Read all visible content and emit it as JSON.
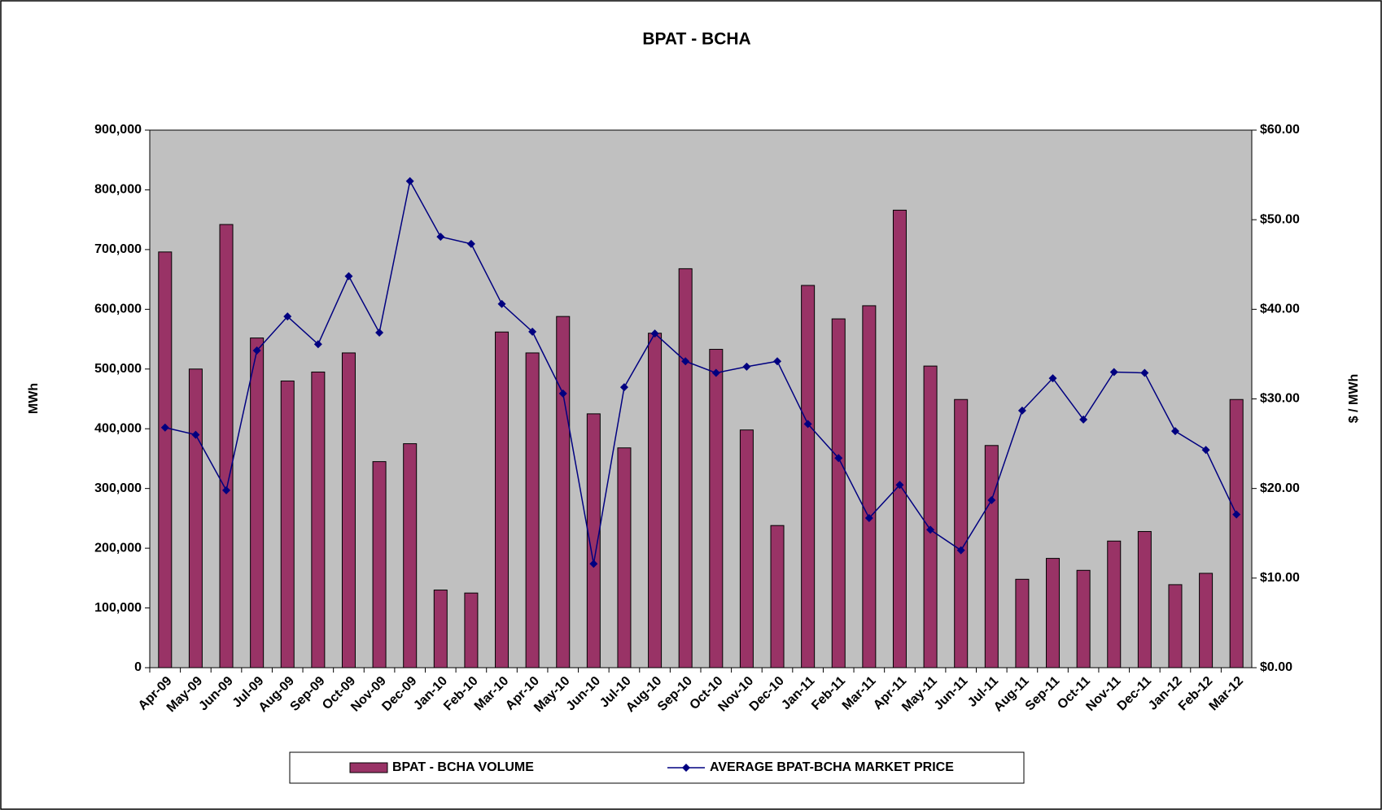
{
  "chart_data": {
    "type": "bar-line",
    "title": "BPAT - BCHA",
    "y_label": "MWh",
    "y2_label": "$ / MWh",
    "categories": [
      "Apr-09",
      "May-09",
      "Jun-09",
      "Jul-09",
      "Aug-09",
      "Sep-09",
      "Oct-09",
      "Nov-09",
      "Dec-09",
      "Jan-10",
      "Feb-10",
      "Mar-10",
      "Apr-10",
      "May-10",
      "Jun-10",
      "Jul-10",
      "Aug-10",
      "Sep-10",
      "Oct-10",
      "Nov-10",
      "Dec-10",
      "Jan-11",
      "Feb-11",
      "Mar-11",
      "Apr-11",
      "May-11",
      "Jun-11",
      "Jul-11",
      "Aug-11",
      "Sep-11",
      "Oct-11",
      "Nov-11",
      "Dec-11",
      "Jan-12",
      "Feb-12",
      "Mar-12"
    ],
    "series": [
      {
        "name": "BPAT - BCHA VOLUME",
        "type": "bar",
        "color": "#993366",
        "values": [
          696000,
          500000,
          742000,
          552000,
          480000,
          495000,
          527000,
          345000,
          375000,
          130000,
          125000,
          562000,
          527000,
          588000,
          425000,
          368000,
          560000,
          668000,
          533000,
          398000,
          238000,
          640000,
          584000,
          606000,
          766000,
          505000,
          449000,
          372000,
          148000,
          183000,
          163000,
          212000,
          228000,
          139000,
          158000,
          449000
        ]
      },
      {
        "name": "AVERAGE BPAT-BCHA MARKET PRICE",
        "type": "line",
        "axis": "y2",
        "color": "#000080",
        "values": [
          26.8,
          26.0,
          19.8,
          35.4,
          39.2,
          36.1,
          43.7,
          37.4,
          54.3,
          48.1,
          47.3,
          40.6,
          37.5,
          30.6,
          11.6,
          31.3,
          37.3,
          34.2,
          32.9,
          33.6,
          34.2,
          27.2,
          23.4,
          16.7,
          20.4,
          15.4,
          13.1,
          18.7,
          28.7,
          32.3,
          27.7,
          33.0,
          32.9,
          26.4,
          24.3,
          17.1
        ]
      }
    ],
    "ylim": [
      0,
      900000
    ],
    "yticks": [
      0,
      {
        "value": 100000,
        "label": "100,000"
      },
      {
        "value": 200000,
        "label": "200,000"
      },
      {
        "value": 300000,
        "label": "300,000"
      },
      {
        "value": 400000,
        "label": "400,000"
      },
      {
        "value": 500000,
        "label": "500,000"
      },
      {
        "value": 600000,
        "label": "600,000"
      },
      {
        "value": 700000,
        "label": "700,000"
      },
      {
        "value": 800000,
        "label": "800,000"
      },
      {
        "value": 900000,
        "label": "900,000"
      }
    ],
    "y2lim": [
      0,
      60
    ],
    "y2ticks": [
      {
        "value": 0,
        "label": "$0.00"
      },
      {
        "value": 10,
        "label": "$10.00"
      },
      {
        "value": 20,
        "label": "$20.00"
      },
      {
        "value": 30,
        "label": "$30.00"
      },
      {
        "value": 40,
        "label": "$40.00"
      },
      {
        "value": 50,
        "label": "$50.00"
      },
      {
        "value": 60,
        "label": "$60.00"
      }
    ],
    "plot_background": "#c0c0c0",
    "legend": "bottom"
  }
}
